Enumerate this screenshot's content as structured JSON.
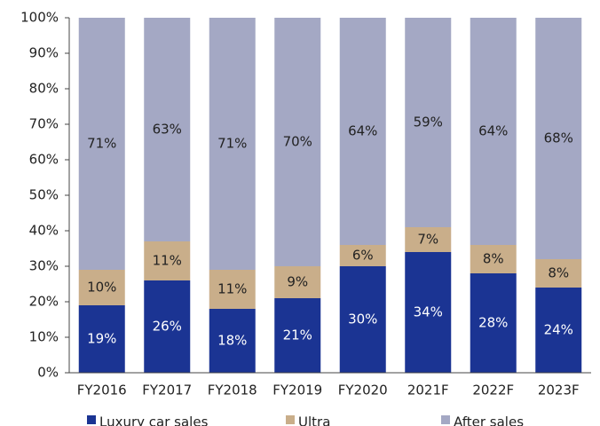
{
  "chart_data": {
    "type": "stacked_bar",
    "categories": [
      "FY2016",
      "FY2017",
      "FY2018",
      "FY2019",
      "FY2020",
      "2021F",
      "2022F",
      "2023F"
    ],
    "series": [
      {
        "name": "Luxury car sales",
        "color": "#1b3493",
        "label_color": "#ffffff",
        "values": [
          19,
          26,
          18,
          21,
          30,
          34,
          28,
          24
        ],
        "value_labels": [
          "19%",
          "26%",
          "18%",
          "21%",
          "30%",
          "34%",
          "28%",
          "24%"
        ]
      },
      {
        "name": "Ultra",
        "color": "#c9ae8a",
        "label_color": "#222222",
        "values": [
          10,
          11,
          11,
          9,
          6,
          7,
          8,
          8
        ],
        "value_labels": [
          "10%",
          "11%",
          "11%",
          "9%",
          "6%",
          "7%",
          "8%",
          "8%"
        ]
      },
      {
        "name": "After sales",
        "color": "#a4a8c4",
        "label_color": "#222222",
        "values": [
          71,
          63,
          71,
          70,
          64,
          59,
          64,
          68
        ],
        "value_labels": [
          "71%",
          "63%",
          "71%",
          "70%",
          "64%",
          "59%",
          "64%",
          "68%"
        ]
      }
    ],
    "ylim": [
      0,
      100
    ],
    "yticks": [
      {
        "value": 0,
        "label": "0%"
      },
      {
        "value": 10,
        "label": "10%"
      },
      {
        "value": 20,
        "label": "20%"
      },
      {
        "value": 30,
        "label": "30%"
      },
      {
        "value": 40,
        "label": "40%"
      },
      {
        "value": 50,
        "label": "50%"
      },
      {
        "value": 60,
        "label": "60%"
      },
      {
        "value": 70,
        "label": "70%"
      },
      {
        "value": 80,
        "label": "80%"
      },
      {
        "value": 90,
        "label": "90%"
      },
      {
        "value": 100,
        "label": "100%"
      }
    ],
    "legend": "bottom"
  }
}
